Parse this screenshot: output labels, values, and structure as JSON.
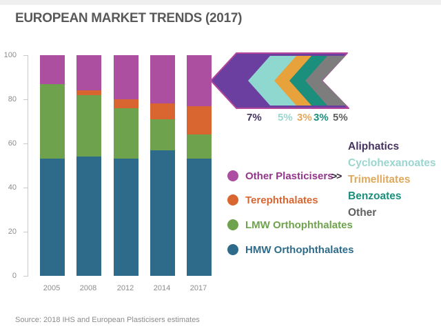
{
  "title": "EUROPEAN MARKET TRENDS (2017)",
  "source": "Source: 2018 IHS and European Plasticisers estimates",
  "chart_data": {
    "type": "bar",
    "stacked": true,
    "title": "EUROPEAN MARKET TRENDS (2017)",
    "categories": [
      "2005",
      "2008",
      "2012",
      "2014",
      "2017"
    ],
    "series": [
      {
        "name": "HMW Orthophthalates",
        "color": "#2e6b8a",
        "values": [
          53,
          54,
          53,
          57,
          53
        ]
      },
      {
        "name": "LMW Orthophthalates",
        "color": "#6fa24c",
        "values": [
          34,
          28,
          23,
          14,
          11
        ]
      },
      {
        "name": "Terephthalates",
        "color": "#d96530",
        "values": [
          0,
          2,
          4,
          7,
          13
        ]
      },
      {
        "name": "Other Plasticisers",
        "color": "#ad4fa0",
        "values": [
          13,
          16,
          20,
          22,
          23
        ]
      }
    ],
    "ylabel": "",
    "xlabel": "",
    "unit": "%",
    "ylim": [
      0,
      100
    ],
    "yticks": [
      0,
      20,
      40,
      60,
      80,
      100
    ],
    "grid": false,
    "legend_position": "right"
  },
  "legend": {
    "pointer": ">>",
    "items": [
      {
        "label": "Other Plasticisers",
        "color": "#ad4fa0",
        "text_color": "#93368b"
      },
      {
        "label": "Terephthalates",
        "color": "#d96530",
        "text_color": "#d96530"
      },
      {
        "label": "LMW Orthophthalates",
        "color": "#6fa24c",
        "text_color": "#6fa24c"
      },
      {
        "label": "HMW Orthophthalates",
        "color": "#2e6b8a",
        "text_color": "#2e6b8a"
      }
    ]
  },
  "breakout": {
    "outline_color": "#b5489b",
    "segments": [
      {
        "label": "Aliphatics",
        "pct": "7%",
        "color": "#6b3fa0",
        "text_color": "#45335f"
      },
      {
        "label": "Cyclohexanoates",
        "pct": "5%",
        "color": "#8fd8d0",
        "text_color": "#9ad6cf"
      },
      {
        "label": "Trimellitates",
        "pct": "3%",
        "color": "#e8a23c",
        "text_color": "#dfa95c"
      },
      {
        "label": "Benzoates",
        "pct": "3%",
        "color": "#1b8f7c",
        "text_color": "#1b8f7c"
      },
      {
        "label": "Other",
        "pct": "5%",
        "color": "#7d7d7d",
        "text_color": "#5f5f5f"
      }
    ]
  }
}
